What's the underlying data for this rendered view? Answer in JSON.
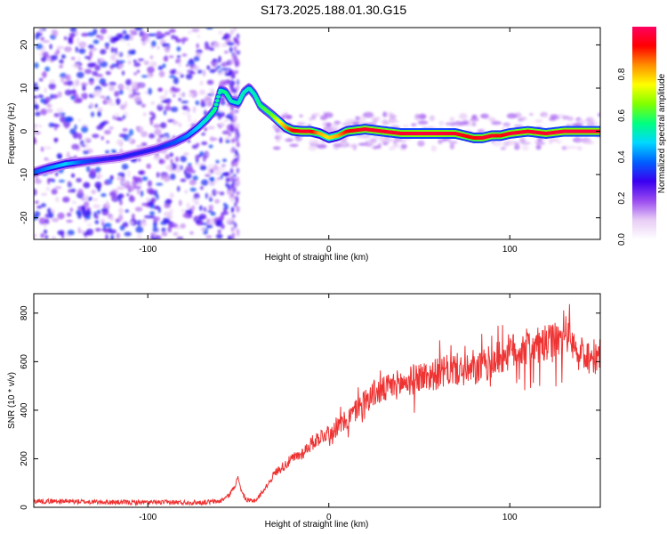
{
  "title": "S173.2025.188.01.30.G15",
  "chart_data": [
    {
      "type": "heatmap",
      "xlabel": "Height of straight line (km)",
      "ylabel": "Frequency (Hz)",
      "xlim": [
        -163,
        150
      ],
      "ylim": [
        -25,
        24
      ],
      "xticks": [
        -100,
        0,
        100
      ],
      "yticks": [
        -20,
        -10,
        0,
        10,
        20
      ],
      "colorbar": {
        "label": "Normalized spectral amplitude",
        "range": [
          0,
          1
        ],
        "ticks": [
          "0.0",
          "0.2",
          "0.4",
          "0.6",
          "0.8"
        ],
        "colors": [
          "#ffffff",
          "#e8ccf5",
          "#9a4bf0",
          "#3a00f0",
          "#0060ff",
          "#00d8ff",
          "#00ff80",
          "#80ff00",
          "#ffff00",
          "#ff9000",
          "#ff0000",
          "#ff0060"
        ]
      },
      "ridge": {
        "x": [
          -163,
          -155,
          -145,
          -135,
          -125,
          -115,
          -105,
          -95,
          -85,
          -78,
          -72,
          -67,
          -63,
          -60,
          -57,
          -54,
          -50,
          -47,
          -44,
          -41,
          -38,
          -35,
          -32,
          -28,
          -24,
          -20,
          -15,
          -10,
          -5,
          0,
          5,
          10,
          20,
          30,
          40,
          50,
          60,
          70,
          80,
          85,
          90,
          95,
          100,
          110,
          120,
          130,
          140,
          150
        ],
        "y": [
          -9.5,
          -8.5,
          -7.5,
          -7.0,
          -6.5,
          -6.0,
          -5.0,
          -4.0,
          -2.5,
          -1.0,
          1.0,
          3.0,
          5.0,
          9.5,
          9.0,
          7.0,
          6.5,
          9.0,
          10.0,
          8.5,
          6.0,
          5.0,
          4.0,
          2.5,
          1.0,
          0.2,
          0.0,
          0.0,
          -0.5,
          -1.5,
          -1.0,
          0.0,
          0.5,
          0.0,
          -0.5,
          -0.5,
          -0.5,
          -0.5,
          -1.5,
          -1.5,
          -1.0,
          -1.0,
          -0.5,
          0.0,
          -0.5,
          0.0,
          0.0,
          0.0
        ],
        "amplitude": [
          0.35,
          0.4,
          0.45,
          0.35,
          0.3,
          0.3,
          0.3,
          0.3,
          0.35,
          0.4,
          0.45,
          0.5,
          0.55,
          0.5,
          0.55,
          0.5,
          0.5,
          0.5,
          0.5,
          0.5,
          0.55,
          0.6,
          0.6,
          0.7,
          0.8,
          0.9,
          0.95,
          0.95,
          0.8,
          0.75,
          0.8,
          0.9,
          0.95,
          0.95,
          0.95,
          0.97,
          0.97,
          0.95,
          0.9,
          0.95,
          0.95,
          0.9,
          0.95,
          0.95,
          0.95,
          0.97,
          0.97,
          0.97
        ]
      }
    },
    {
      "type": "line",
      "xlabel": "Height of straight line (km)",
      "ylabel": "SNR (10 * v/v)",
      "xlim": [
        -163,
        150
      ],
      "ylim": [
        0,
        880
      ],
      "xticks": [
        -100,
        0,
        100
      ],
      "yticks": [
        0,
        200,
        400,
        600,
        800
      ],
      "color": "#ee3333",
      "series": [
        {
          "x": [
            -163,
            -150,
            -130,
            -110,
            -90,
            -70,
            -60,
            -55,
            -52,
            -50,
            -48,
            -45,
            -40,
            -35,
            -30,
            -25,
            -20,
            -15,
            -10,
            -5,
            0,
            5,
            10,
            15,
            20,
            25,
            30,
            35,
            40,
            45,
            50,
            55,
            60,
            65,
            70,
            75,
            80,
            85,
            90,
            95,
            100,
            105,
            110,
            115,
            120,
            125,
            130,
            133,
            136,
            140,
            145,
            150
          ],
          "y": [
            25,
            25,
            22,
            20,
            20,
            20,
            25,
            50,
            90,
            120,
            60,
            25,
            30,
            80,
            140,
            170,
            200,
            220,
            260,
            290,
            310,
            330,
            360,
            400,
            440,
            470,
            480,
            500,
            510,
            520,
            540,
            540,
            550,
            560,
            570,
            560,
            560,
            580,
            600,
            620,
            640,
            650,
            660,
            660,
            670,
            680,
            690,
            750,
            620,
            640,
            620,
            620
          ]
        }
      ]
    }
  ]
}
